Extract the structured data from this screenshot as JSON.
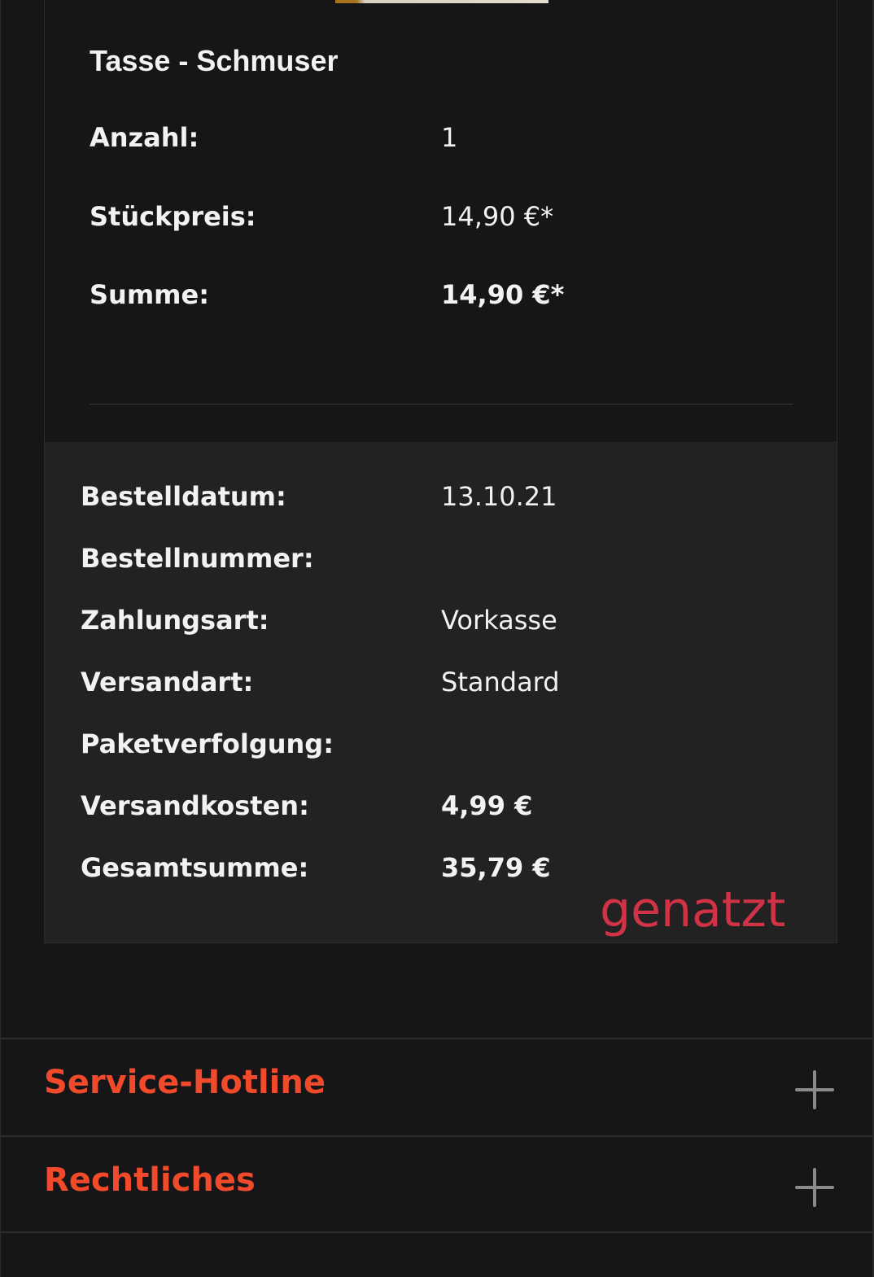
{
  "product": {
    "title": "Tasse - Schmuser",
    "rows": [
      {
        "label": "Anzahl:",
        "value": "1"
      },
      {
        "label": "Stückpreis:",
        "value": "14,90 €*"
      },
      {
        "label": "Summe:",
        "value": "14,90 €*"
      }
    ]
  },
  "order": {
    "rows": [
      {
        "label": "Bestelldatum:",
        "value": "13.10.21"
      },
      {
        "label": "Bestellnummer:",
        "value": ""
      },
      {
        "label": "Zahlungsart:",
        "value": "Vorkasse"
      },
      {
        "label": "Versandart:",
        "value": "Standard"
      },
      {
        "label": "Paketverfolgung:",
        "value": ""
      },
      {
        "label": "Versandkosten:",
        "value": "4,99 €"
      },
      {
        "label": "Gesamtsumme:",
        "value": "35,79 €"
      }
    ],
    "stamp": "genatzt",
    "stamp_color": "#d03246"
  },
  "footer": {
    "sections": [
      {
        "label": "Service-Hotline",
        "icon": "plus-icon"
      },
      {
        "label": "Rechtliches",
        "icon": "plus-icon"
      }
    ],
    "accent": "#f04a2a"
  }
}
